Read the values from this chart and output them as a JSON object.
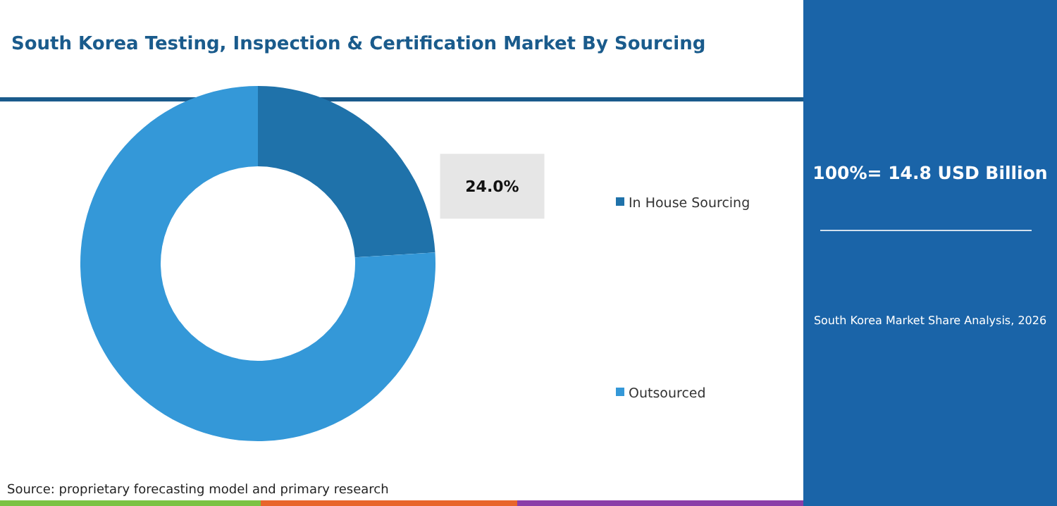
{
  "chart_data": {
    "type": "donut",
    "title": "South Korea Testing, Inspection & Certification Market By Sourcing",
    "categories": [
      "In House Sourcing",
      "Outsourced"
    ],
    "values": [
      24,
      76
    ],
    "colors": [
      "#1f72aa",
      "#3498d8"
    ],
    "value_labels": [
      "24.0%",
      null
    ],
    "legend": "right",
    "annotations": [
      "100%= 14.8 USD Billion",
      "South Korea Market Share Analysis, 2026",
      "Source: proprietary forecasting model and primary research"
    ]
  }
}
